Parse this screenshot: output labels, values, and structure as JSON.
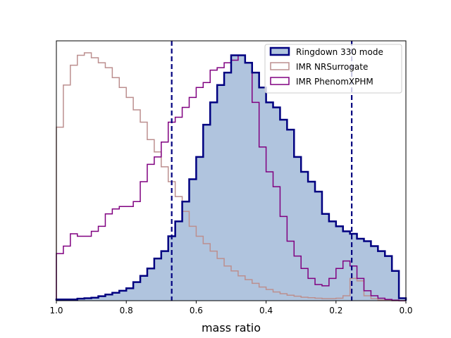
{
  "chart_data": {
    "type": "histogram",
    "title": "",
    "xlabel": "mass ratio",
    "ylabel": "",
    "xlim": [
      1.0,
      0.0
    ],
    "x_inverted": true,
    "x_ticks": [
      "1.0",
      "0.8",
      "0.6",
      "0.4",
      "0.2",
      "0.0"
    ],
    "y_ticks_shown": false,
    "legend_position": "top-right",
    "vlines": [
      {
        "x": 0.67,
        "color": "#000080",
        "style": "dashed"
      },
      {
        "x": 0.155,
        "color": "#000080",
        "style": "dashed"
      }
    ],
    "bin_edges": [
      1.0,
      0.98,
      0.96,
      0.94,
      0.92,
      0.9,
      0.88,
      0.86,
      0.84,
      0.82,
      0.8,
      0.78,
      0.76,
      0.74,
      0.72,
      0.7,
      0.68,
      0.66,
      0.64,
      0.62,
      0.6,
      0.58,
      0.56,
      0.54,
      0.52,
      0.5,
      0.48,
      0.46,
      0.44,
      0.42,
      0.4,
      0.38,
      0.36,
      0.34,
      0.32,
      0.3,
      0.28,
      0.26,
      0.24,
      0.22,
      0.2,
      0.18,
      0.16,
      0.14,
      0.12,
      0.1,
      0.08,
      0.06,
      0.04,
      0.02,
      0.0
    ],
    "series": [
      {
        "name": "Ringdown 330 mode",
        "legend_label": "Ringdown 330 mode",
        "style": "filled-step",
        "fill_color": "#b0c4de",
        "edge_color": "#000080",
        "values": [
          0.005,
          0.005,
          0.005,
          0.008,
          0.01,
          0.012,
          0.018,
          0.025,
          0.032,
          0.04,
          0.05,
          0.075,
          0.1,
          0.13,
          0.17,
          0.2,
          0.26,
          0.32,
          0.4,
          0.49,
          0.58,
          0.71,
          0.8,
          0.87,
          0.92,
          0.99,
          0.99,
          0.96,
          0.92,
          0.86,
          0.8,
          0.78,
          0.73,
          0.69,
          0.58,
          0.52,
          0.48,
          0.44,
          0.35,
          0.32,
          0.3,
          0.28,
          0.27,
          0.25,
          0.24,
          0.22,
          0.2,
          0.18,
          0.12,
          0.01
        ]
      },
      {
        "name": "IMR NRSurrogate",
        "legend_label": "IMR NRSurrogate",
        "style": "step",
        "edge_color": "#bc8f8f",
        "values": [
          0.7,
          0.87,
          0.95,
          0.99,
          1.0,
          0.98,
          0.96,
          0.94,
          0.9,
          0.86,
          0.82,
          0.77,
          0.72,
          0.65,
          0.6,
          0.54,
          0.48,
          0.42,
          0.36,
          0.3,
          0.26,
          0.23,
          0.2,
          0.17,
          0.14,
          0.12,
          0.1,
          0.085,
          0.07,
          0.055,
          0.045,
          0.035,
          0.028,
          0.022,
          0.018,
          0.014,
          0.012,
          0.01,
          0.008,
          0.008,
          0.01,
          0.02,
          0.09,
          0.08,
          0.02,
          0.008,
          0.003,
          0.001,
          0.0,
          0.0
        ]
      },
      {
        "name": "IMR PhenomXPHM",
        "legend_label": "IMR PhenomXPHM",
        "style": "step",
        "edge_color": "#800080",
        "values": [
          0.19,
          0.22,
          0.27,
          0.26,
          0.26,
          0.28,
          0.3,
          0.35,
          0.37,
          0.38,
          0.38,
          0.4,
          0.48,
          0.55,
          0.58,
          0.64,
          0.72,
          0.74,
          0.78,
          0.82,
          0.86,
          0.88,
          0.93,
          0.94,
          0.96,
          0.97,
          0.99,
          0.96,
          0.8,
          0.62,
          0.52,
          0.46,
          0.34,
          0.24,
          0.18,
          0.13,
          0.09,
          0.065,
          0.06,
          0.09,
          0.13,
          0.16,
          0.14,
          0.09,
          0.04,
          0.02,
          0.01,
          0.005,
          0.002,
          0.0
        ]
      }
    ]
  }
}
